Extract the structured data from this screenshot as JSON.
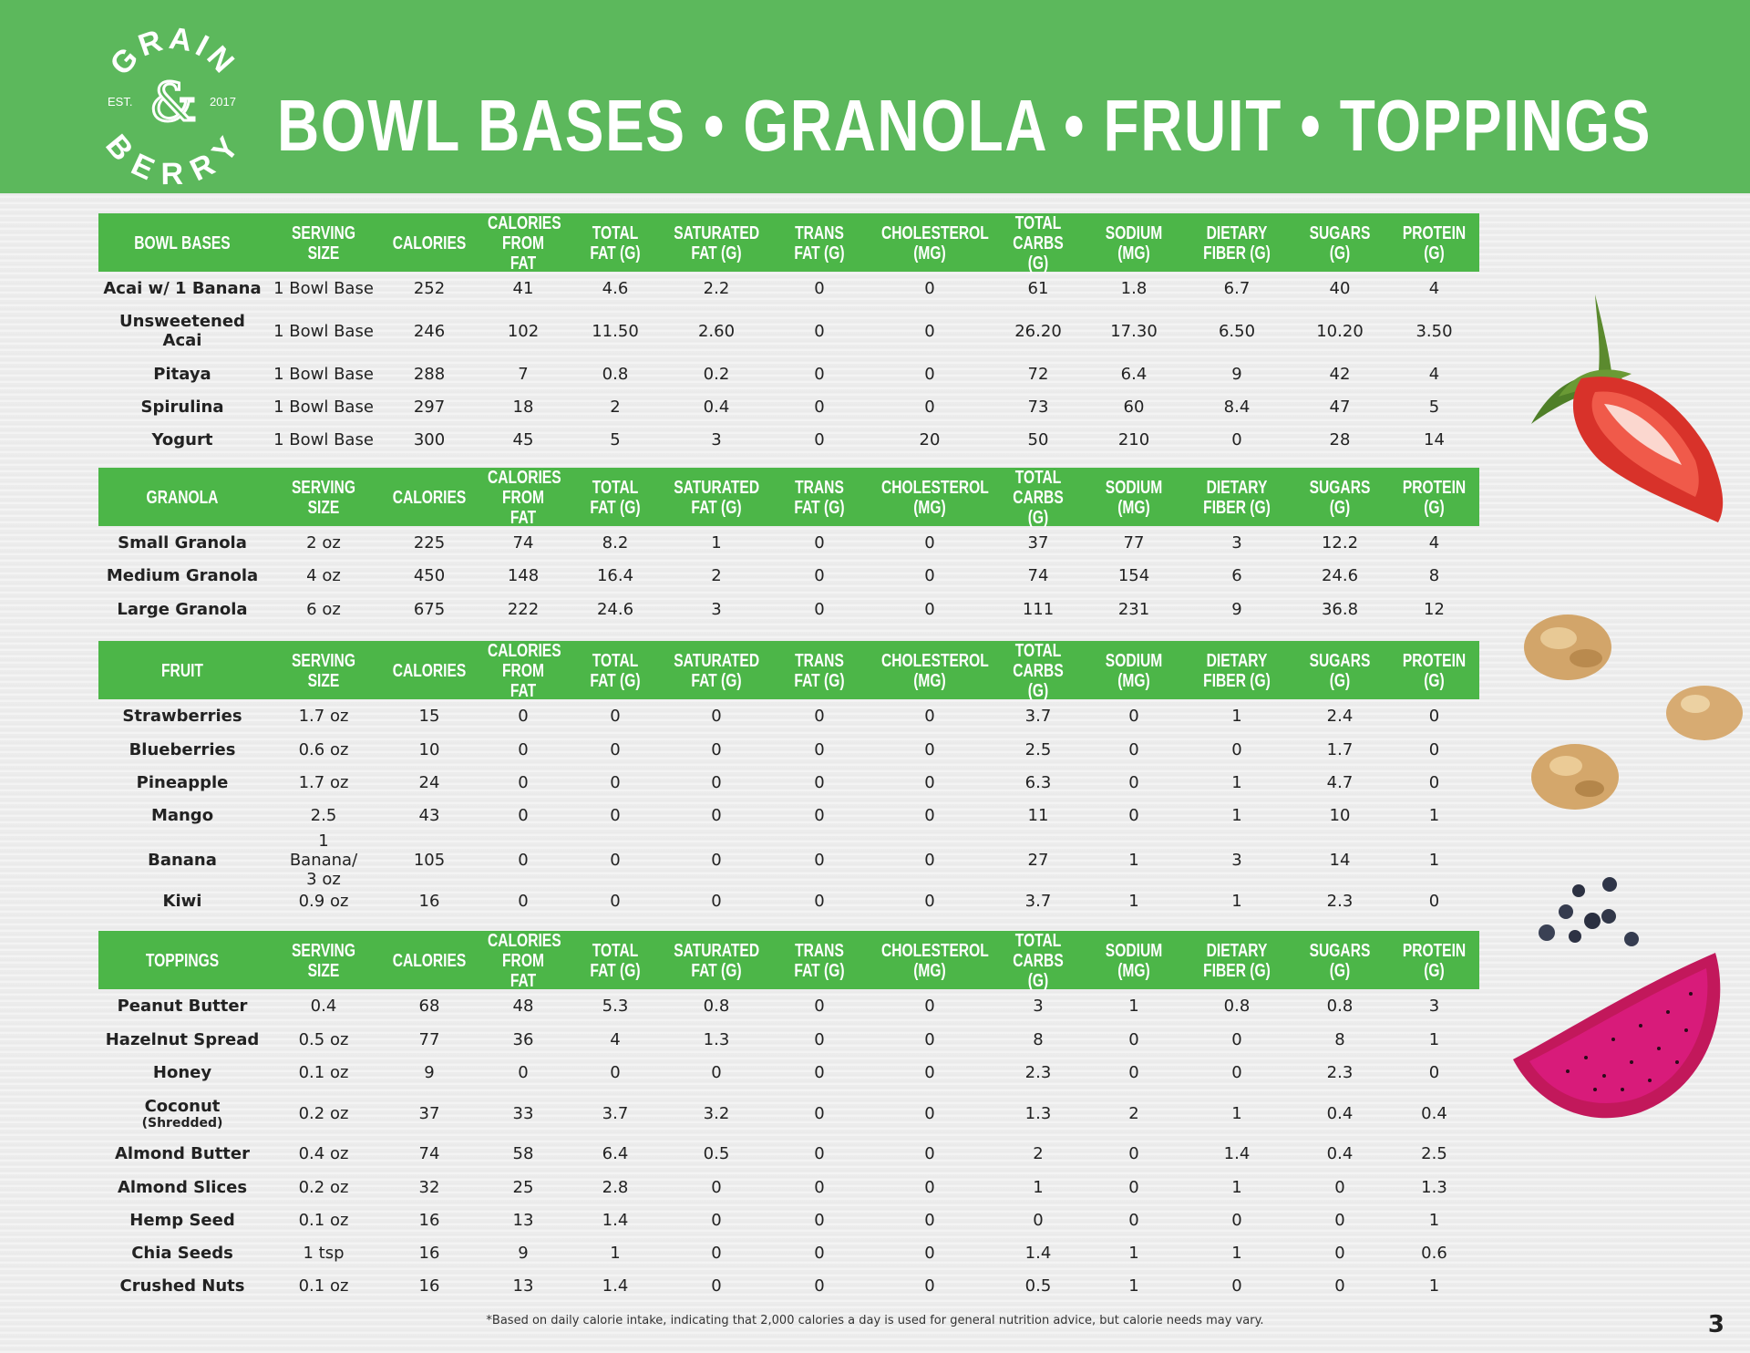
{
  "brand": {
    "top_text": "GRAIN",
    "ampersand": "&",
    "bottom_text": "BERRY",
    "est": "EST.",
    "year": "2017",
    "color": "#ffffff"
  },
  "page": {
    "title": "BOWL BASES • GRANOLA • FRUIT • TOPPINGS",
    "footnote": "*Based on daily calorie intake, indicating that 2,000 calories a day is used for general nutrition advice, but calorie needs may vary.",
    "page_number": "3"
  },
  "colors": {
    "header_bg": "#5cb85c",
    "table_header_bg": "#4cb648"
  },
  "column_headers": [
    "SERVING SIZE",
    "CALORIES",
    "CALORIES FROM FAT",
    "TOTAL FAT (G)",
    "SATURATED FAT (G)",
    "TRANS FAT (G)",
    "CHOLESTEROL (MG)",
    "TOTAL CARBS (G)",
    "SODIUM (MG)",
    "DIETARY FIBER (G)",
    "SUGARS (G)",
    "PROTEIN (G)"
  ],
  "sections": [
    {
      "title": "BOWL BASES",
      "rows": [
        {
          "name": "Acai w/ 1 Banana",
          "sub": "",
          "values": [
            "1 Bowl Base",
            "252",
            "41",
            "4.6",
            "2.2",
            "0",
            "0",
            "61",
            "1.8",
            "6.7",
            "40",
            "4"
          ]
        },
        {
          "name": "Unsweetened Acai",
          "sub": "",
          "values": [
            "1 Bowl Base",
            "246",
            "102",
            "11.50",
            "2.60",
            "0",
            "0",
            "26.20",
            "17.30",
            "6.50",
            "10.20",
            "3.50"
          ]
        },
        {
          "name": "Pitaya",
          "sub": "",
          "values": [
            "1 Bowl Base",
            "288",
            "7",
            "0.8",
            "0.2",
            "0",
            "0",
            "72",
            "6.4",
            "9",
            "42",
            "4"
          ]
        },
        {
          "name": "Spirulina",
          "sub": "",
          "values": [
            "1 Bowl Base",
            "297",
            "18",
            "2",
            "0.4",
            "0",
            "0",
            "73",
            "60",
            "8.4",
            "47",
            "5"
          ]
        },
        {
          "name": "Yogurt",
          "sub": "",
          "values": [
            "1  Bowl Base",
            "300",
            "45",
            "5",
            "3",
            "0",
            "20",
            "50",
            "210",
            "0",
            "28",
            "14"
          ]
        }
      ]
    },
    {
      "title": "GRANOLA",
      "rows": [
        {
          "name": "Small Granola",
          "sub": "",
          "values": [
            "2 oz",
            "225",
            "74",
            "8.2",
            "1",
            "0",
            "0",
            "37",
            "77",
            "3",
            "12.2",
            "4"
          ]
        },
        {
          "name": "Medium Granola",
          "sub": "",
          "values": [
            "4 oz",
            "450",
            "148",
            "16.4",
            "2",
            "0",
            "0",
            "74",
            "154",
            "6",
            "24.6",
            "8"
          ]
        },
        {
          "name": "Large Granola",
          "sub": "",
          "values": [
            "6 oz",
            "675",
            "222",
            "24.6",
            "3",
            "0",
            "0",
            "111",
            "231",
            "9",
            "36.8",
            "12"
          ]
        }
      ]
    },
    {
      "title": "FRUIT",
      "rows": [
        {
          "name": "Strawberries",
          "sub": "",
          "values": [
            "1.7 oz",
            "15",
            "0",
            "0",
            "0",
            "0",
            "0",
            "3.7",
            "0",
            "1",
            "2.4",
            "0"
          ]
        },
        {
          "name": "Blueberries",
          "sub": "",
          "values": [
            "0.6 oz",
            "10",
            "0",
            "0",
            "0",
            "0",
            "0",
            "2.5",
            "0",
            "0",
            "1.7",
            "0"
          ]
        },
        {
          "name": "Pineapple",
          "sub": "",
          "values": [
            "1.7 oz",
            "24",
            "0",
            "0",
            "0",
            "0",
            "0",
            "6.3",
            "0",
            "1",
            "4.7",
            "0"
          ]
        },
        {
          "name": "Mango",
          "sub": "",
          "values": [
            "2.5",
            "43",
            "0",
            "0",
            "0",
            "0",
            "0",
            "11",
            "0",
            "1",
            "10",
            "1"
          ]
        },
        {
          "name": "Banana",
          "sub": "",
          "values": [
            "1 Banana/ 3 oz",
            "105",
            "0",
            "0",
            "0",
            "0",
            "0",
            "27",
            "1",
            "3",
            "14",
            "1"
          ]
        },
        {
          "name": "Kiwi",
          "sub": "",
          "values": [
            "0.9 oz",
            "16",
            "0",
            "0",
            "0",
            "0",
            "0",
            "3.7",
            "1",
            "1",
            "2.3",
            "0"
          ]
        }
      ]
    },
    {
      "title": "TOPPINGS",
      "rows": [
        {
          "name": "Peanut Butter",
          "sub": "",
          "values": [
            "0.4",
            "68",
            "48",
            "5.3",
            "0.8",
            "0",
            "0",
            "3",
            "1",
            "0.8",
            "0.8",
            "3"
          ]
        },
        {
          "name": "Hazelnut Spread",
          "sub": "",
          "values": [
            "0.5 oz",
            "77",
            "36",
            "4",
            "1.3",
            "0",
            "0",
            "8",
            "0",
            "0",
            "8",
            "1"
          ]
        },
        {
          "name": "Honey",
          "sub": "",
          "values": [
            "0.1 oz",
            "9",
            "0",
            "0",
            "0",
            "0",
            "0",
            "2.3",
            "0",
            "0",
            "2.3",
            "0"
          ]
        },
        {
          "name": "Coconut",
          "sub": "(Shredded)",
          "values": [
            "0.2 oz",
            "37",
            "33",
            "3.7",
            "3.2",
            "0",
            "0",
            "1.3",
            "2",
            "1",
            "0.4",
            "0.4"
          ]
        },
        {
          "name": "Almond Butter",
          "sub": "",
          "values": [
            "0.4 oz",
            "74",
            "58",
            "6.4",
            "0.5",
            "0",
            "0",
            "2",
            "0",
            "1.4",
            "0.4",
            "2.5"
          ]
        },
        {
          "name": "Almond Slices",
          "sub": "",
          "values": [
            "0.2 oz",
            "32",
            "25",
            "2.8",
            "0",
            "0",
            "0",
            "1",
            "0",
            "1",
            "0",
            "1.3"
          ]
        },
        {
          "name": "Hemp Seed",
          "sub": "",
          "values": [
            "0.1 oz",
            "16",
            "13",
            "1.4",
            "0",
            "0",
            "0",
            "0",
            "0",
            "0",
            "0",
            "1"
          ]
        },
        {
          "name": "Chia Seeds",
          "sub": "",
          "values": [
            "1 tsp",
            "16",
            "9",
            "1",
            "0",
            "0",
            "0",
            "1.4",
            "1",
            "1",
            "0",
            "0.6"
          ]
        },
        {
          "name": "Crushed Nuts",
          "sub": "",
          "values": [
            "0.1 oz",
            "16",
            "13",
            "1.4",
            "0",
            "0",
            "0",
            "0.5",
            "1",
            "0",
            "0",
            "1"
          ]
        }
      ]
    }
  ],
  "decorations": [
    "strawberry-image",
    "granola-cluster-image",
    "blueberries-image",
    "dragon-fruit-image"
  ]
}
